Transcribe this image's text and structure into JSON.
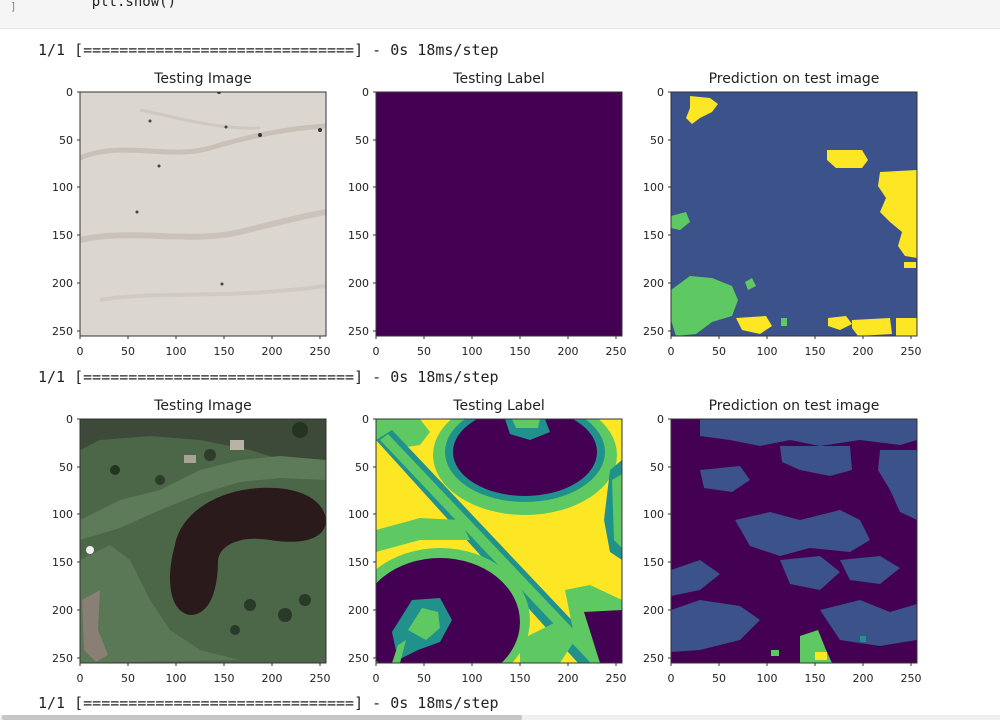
{
  "cell": {
    "gutter": "]",
    "code": "    plt.show()"
  },
  "progress_lines": [
    "1/1 [==============================] - 0s 18ms/step",
    "1/1 [==============================] - 0s 18ms/step",
    "1/1 [==============================] - 0s 18ms/step"
  ],
  "rows": [
    {
      "panels": [
        {
          "title": "Testing Image",
          "kind": "sand-image"
        },
        {
          "title": "Testing Label",
          "kind": "uniform-label"
        },
        {
          "title": "Prediction on test image",
          "kind": "prediction-1"
        }
      ]
    },
    {
      "panels": [
        {
          "title": "Testing Image",
          "kind": "golf-image"
        },
        {
          "title": "Testing Label",
          "kind": "golf-label"
        },
        {
          "title": "Prediction on test image",
          "kind": "prediction-2"
        }
      ]
    }
  ],
  "axes": {
    "x_ticks": [
      "0",
      "50",
      "100",
      "150",
      "200",
      "250"
    ],
    "y_ticks": [
      "0",
      "50",
      "100",
      "150",
      "200",
      "250"
    ]
  },
  "colors": {
    "viridis_dark": "#440154",
    "viridis_blue": "#3b528b",
    "viridis_teal": "#21918c",
    "viridis_green": "#5ec962",
    "viridis_yellow": "#fde725",
    "sand": "#d9d3cc",
    "grass": "#4e6c4a"
  }
}
